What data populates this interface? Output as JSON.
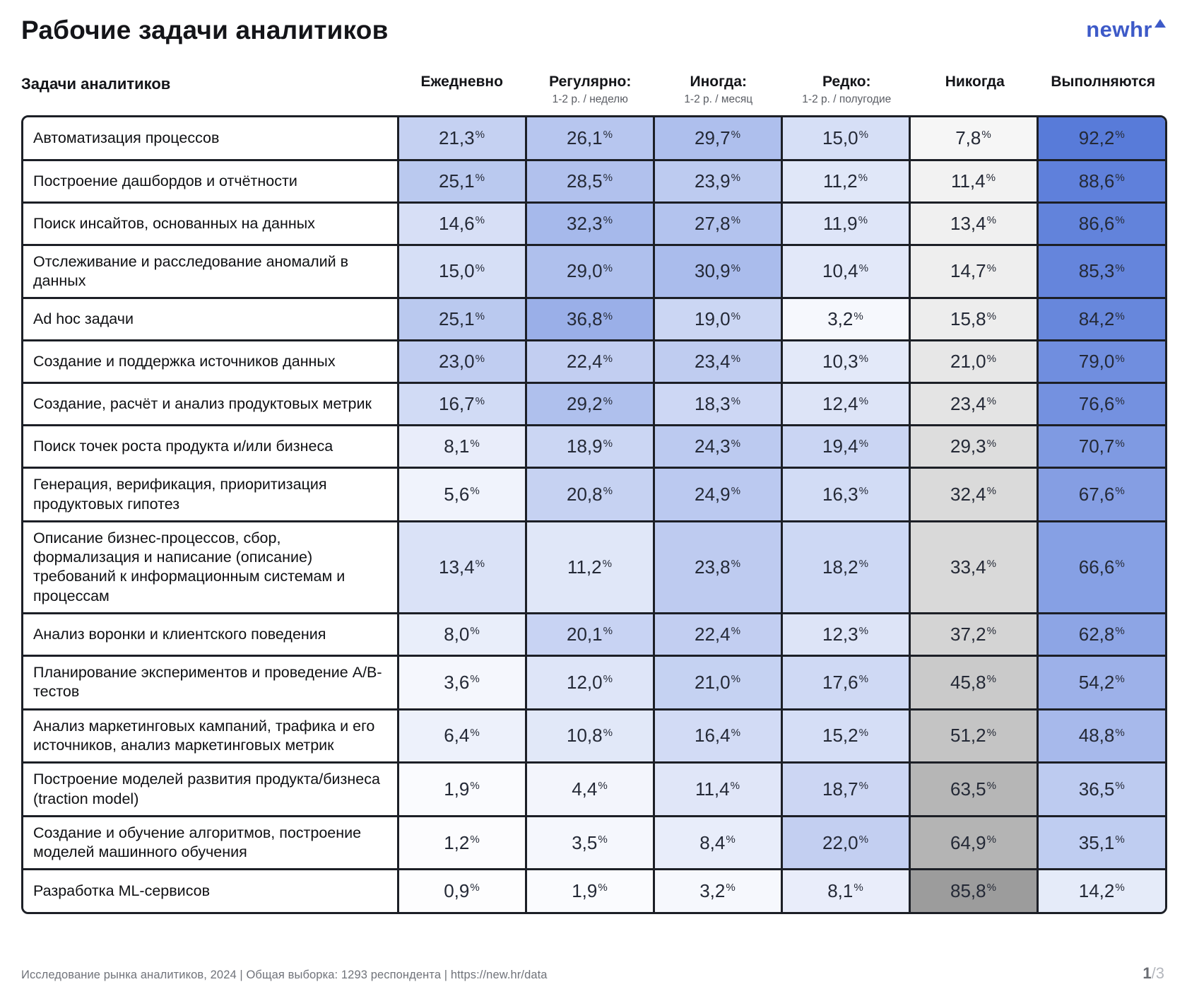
{
  "title": "Рабочие задачи аналитиков",
  "logo": {
    "text": "newhr",
    "color": "#3D5AC8"
  },
  "chart_data": {
    "type": "heatmap",
    "title": "Рабочие задачи аналитиков",
    "row_header": "Задачи аналитиков",
    "value_unit": "%",
    "value_format": "one-decimal-comma",
    "legend_position": "none",
    "columns": [
      {
        "id": "daily",
        "label": "Ежедневно",
        "sublabel": "",
        "scale": "blue-frequency"
      },
      {
        "id": "regularly",
        "label": "Регулярно:",
        "sublabel": "1-2 р. / неделю",
        "scale": "blue-frequency"
      },
      {
        "id": "sometimes",
        "label": "Иногда:",
        "sublabel": "1-2 р. / месяц",
        "scale": "blue-frequency"
      },
      {
        "id": "rarely",
        "label": "Редко:",
        "sublabel": "1-2 р. / полугодие",
        "scale": "blue-frequency"
      },
      {
        "id": "never",
        "label": "Никогда",
        "sublabel": "",
        "scale": "gray"
      },
      {
        "id": "performed",
        "label": "Выполняются",
        "sublabel": "",
        "scale": "blue-total"
      }
    ],
    "rows": [
      {
        "task": "Автоматизация процессов",
        "values": [
          21.3,
          26.1,
          29.7,
          15.0,
          7.8,
          92.2
        ]
      },
      {
        "task": "Построение дашбордов и отчётности",
        "values": [
          25.1,
          28.5,
          23.9,
          11.2,
          11.4,
          88.6
        ]
      },
      {
        "task": "Поиск инсайтов, основанных на данных",
        "values": [
          14.6,
          32.3,
          27.8,
          11.9,
          13.4,
          86.6
        ]
      },
      {
        "task": "Отслеживание и расследование аномалий в данных",
        "values": [
          15.0,
          29.0,
          30.9,
          10.4,
          14.7,
          85.3
        ]
      },
      {
        "task": "Ad hoc задачи",
        "values": [
          25.1,
          36.8,
          19.0,
          3.2,
          15.8,
          84.2
        ]
      },
      {
        "task": "Создание и поддержка источников данных",
        "values": [
          23.0,
          22.4,
          23.4,
          10.3,
          21.0,
          79.0
        ]
      },
      {
        "task": "Создание, расчёт и анализ продуктовых метрик",
        "values": [
          16.7,
          29.2,
          18.3,
          12.4,
          23.4,
          76.6
        ]
      },
      {
        "task": "Поиск точек роста продукта и/или бизнеса",
        "values": [
          8.1,
          18.9,
          24.3,
          19.4,
          29.3,
          70.7
        ]
      },
      {
        "task": "Генерация, верификация, приоритизация продуктовых гипотез",
        "values": [
          5.6,
          20.8,
          24.9,
          16.3,
          32.4,
          67.6
        ]
      },
      {
        "task": "Описание бизнес-процессов, сбор, формализация и написание (описание) требований к информационным системам и процессам",
        "values": [
          13.4,
          11.2,
          23.8,
          18.2,
          33.4,
          66.6
        ]
      },
      {
        "task": "Анализ воронки и клиентского поведения",
        "values": [
          8.0,
          20.1,
          22.4,
          12.3,
          37.2,
          62.8
        ]
      },
      {
        "task": "Планирование экспериментов и проведение A/B-тестов",
        "values": [
          3.6,
          12.0,
          21.0,
          17.6,
          45.8,
          54.2
        ]
      },
      {
        "task": "Анализ маркетинговых кампаний, трафика и его источников, анализ маркетинговых метрик",
        "values": [
          6.4,
          10.8,
          16.4,
          15.2,
          51.2,
          48.8
        ]
      },
      {
        "task": "Построение моделей развития продукта/бизнеса (traction model)",
        "values": [
          1.9,
          4.4,
          11.4,
          18.7,
          63.5,
          36.5
        ]
      },
      {
        "task": "Создание и обучение алгоритмов, построение моделей машинного обучения",
        "values": [
          1.2,
          3.5,
          8.4,
          22.0,
          64.9,
          35.1
        ]
      },
      {
        "task": "Разработка ML-сервисов",
        "values": [
          0.9,
          1.9,
          3.2,
          8.1,
          85.8,
          14.2
        ]
      }
    ],
    "colors": {
      "blue_base": "#4A70D6",
      "grid": "#1C1F26",
      "freq_scale_max": 66,
      "total_scale_max": 100,
      "never_darken_per_percent": 1.15
    }
  },
  "footer": {
    "source": "Исследование рынка аналитиков, 2024 | Общая выборка: 1293 респондента | https://new.hr/data",
    "page_current": "1",
    "page_total": "/3"
  }
}
